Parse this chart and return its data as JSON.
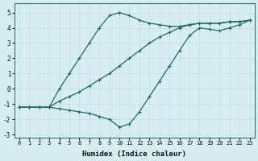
{
  "xlabel": "Humidex (Indice chaleur)",
  "background_color": "#d6eef0",
  "grid_color": "#c8e0e3",
  "line_color": "#1a6b5a",
  "xlim": [
    -0.5,
    23.5
  ],
  "ylim": [
    -3.2,
    5.6
  ],
  "xticks": [
    0,
    1,
    2,
    3,
    4,
    5,
    6,
    7,
    8,
    9,
    10,
    11,
    12,
    13,
    14,
    15,
    16,
    17,
    18,
    19,
    20,
    21,
    22,
    23
  ],
  "yticks": [
    -3,
    -2,
    -1,
    0,
    1,
    2,
    3,
    4,
    5
  ],
  "series": [
    {
      "x": [
        0,
        1,
        2,
        3,
        4,
        5,
        6,
        7,
        8,
        9,
        10,
        11,
        12,
        13,
        14,
        15,
        16,
        17,
        18,
        19,
        20,
        21,
        22,
        23
      ],
      "y": [
        -1.2,
        -1.2,
        -1.2,
        -1.2,
        0.0,
        1.0,
        2.0,
        3.0,
        4.0,
        4.8,
        5.0,
        4.8,
        4.5,
        4.3,
        4.2,
        4.1,
        4.1,
        4.2,
        4.3,
        4.3,
        4.3,
        4.4,
        4.4,
        4.5
      ]
    },
    {
      "x": [
        0,
        1,
        2,
        3,
        4,
        5,
        6,
        7,
        8,
        9,
        10,
        11,
        12,
        13,
        14,
        15,
        16,
        17,
        18,
        19,
        20,
        21,
        22,
        23
      ],
      "y": [
        -1.2,
        -1.2,
        -1.2,
        -1.2,
        -0.8,
        -0.5,
        -0.2,
        0.2,
        0.6,
        1.0,
        1.5,
        2.0,
        2.5,
        3.0,
        3.4,
        3.7,
        4.0,
        4.2,
        4.3,
        4.3,
        4.3,
        4.4,
        4.4,
        4.5
      ]
    },
    {
      "x": [
        0,
        1,
        2,
        3,
        4,
        5,
        6,
        7,
        8,
        9,
        10,
        11,
        12,
        13,
        14,
        15,
        16,
        17,
        18,
        19,
        20,
        21,
        22,
        23
      ],
      "y": [
        -1.2,
        -1.2,
        -1.2,
        -1.2,
        -1.3,
        -1.4,
        -1.5,
        -1.6,
        -1.8,
        -2.0,
        -2.5,
        -2.3,
        -1.5,
        -0.5,
        0.5,
        1.5,
        2.5,
        3.5,
        4.0,
        3.9,
        3.8,
        4.0,
        4.2,
        4.5
      ]
    }
  ]
}
